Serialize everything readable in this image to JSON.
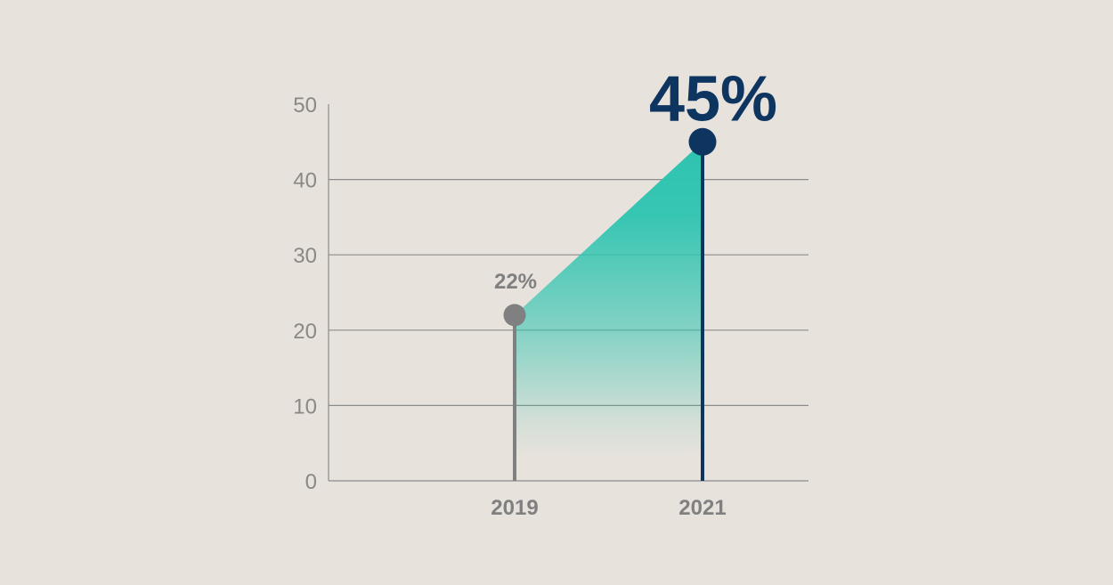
{
  "chart_data": {
    "type": "line",
    "categories": [
      "2019",
      "2021"
    ],
    "values": [
      22,
      45
    ],
    "value_labels": [
      "22%",
      "45%"
    ],
    "ylim": [
      0,
      50
    ],
    "yticks": [
      0,
      10,
      20,
      30,
      40,
      50
    ],
    "ytick_labels": [
      "0",
      "10",
      "20",
      "30",
      "40",
      "50"
    ],
    "grid": true,
    "colors": {
      "background": "#e7e2dc",
      "grid": "#8c8c8c",
      "axis_text": "#8a8886",
      "point_2019": "#808080",
      "point_2021": "#0e3560",
      "fill": "#2ec4b0"
    }
  }
}
